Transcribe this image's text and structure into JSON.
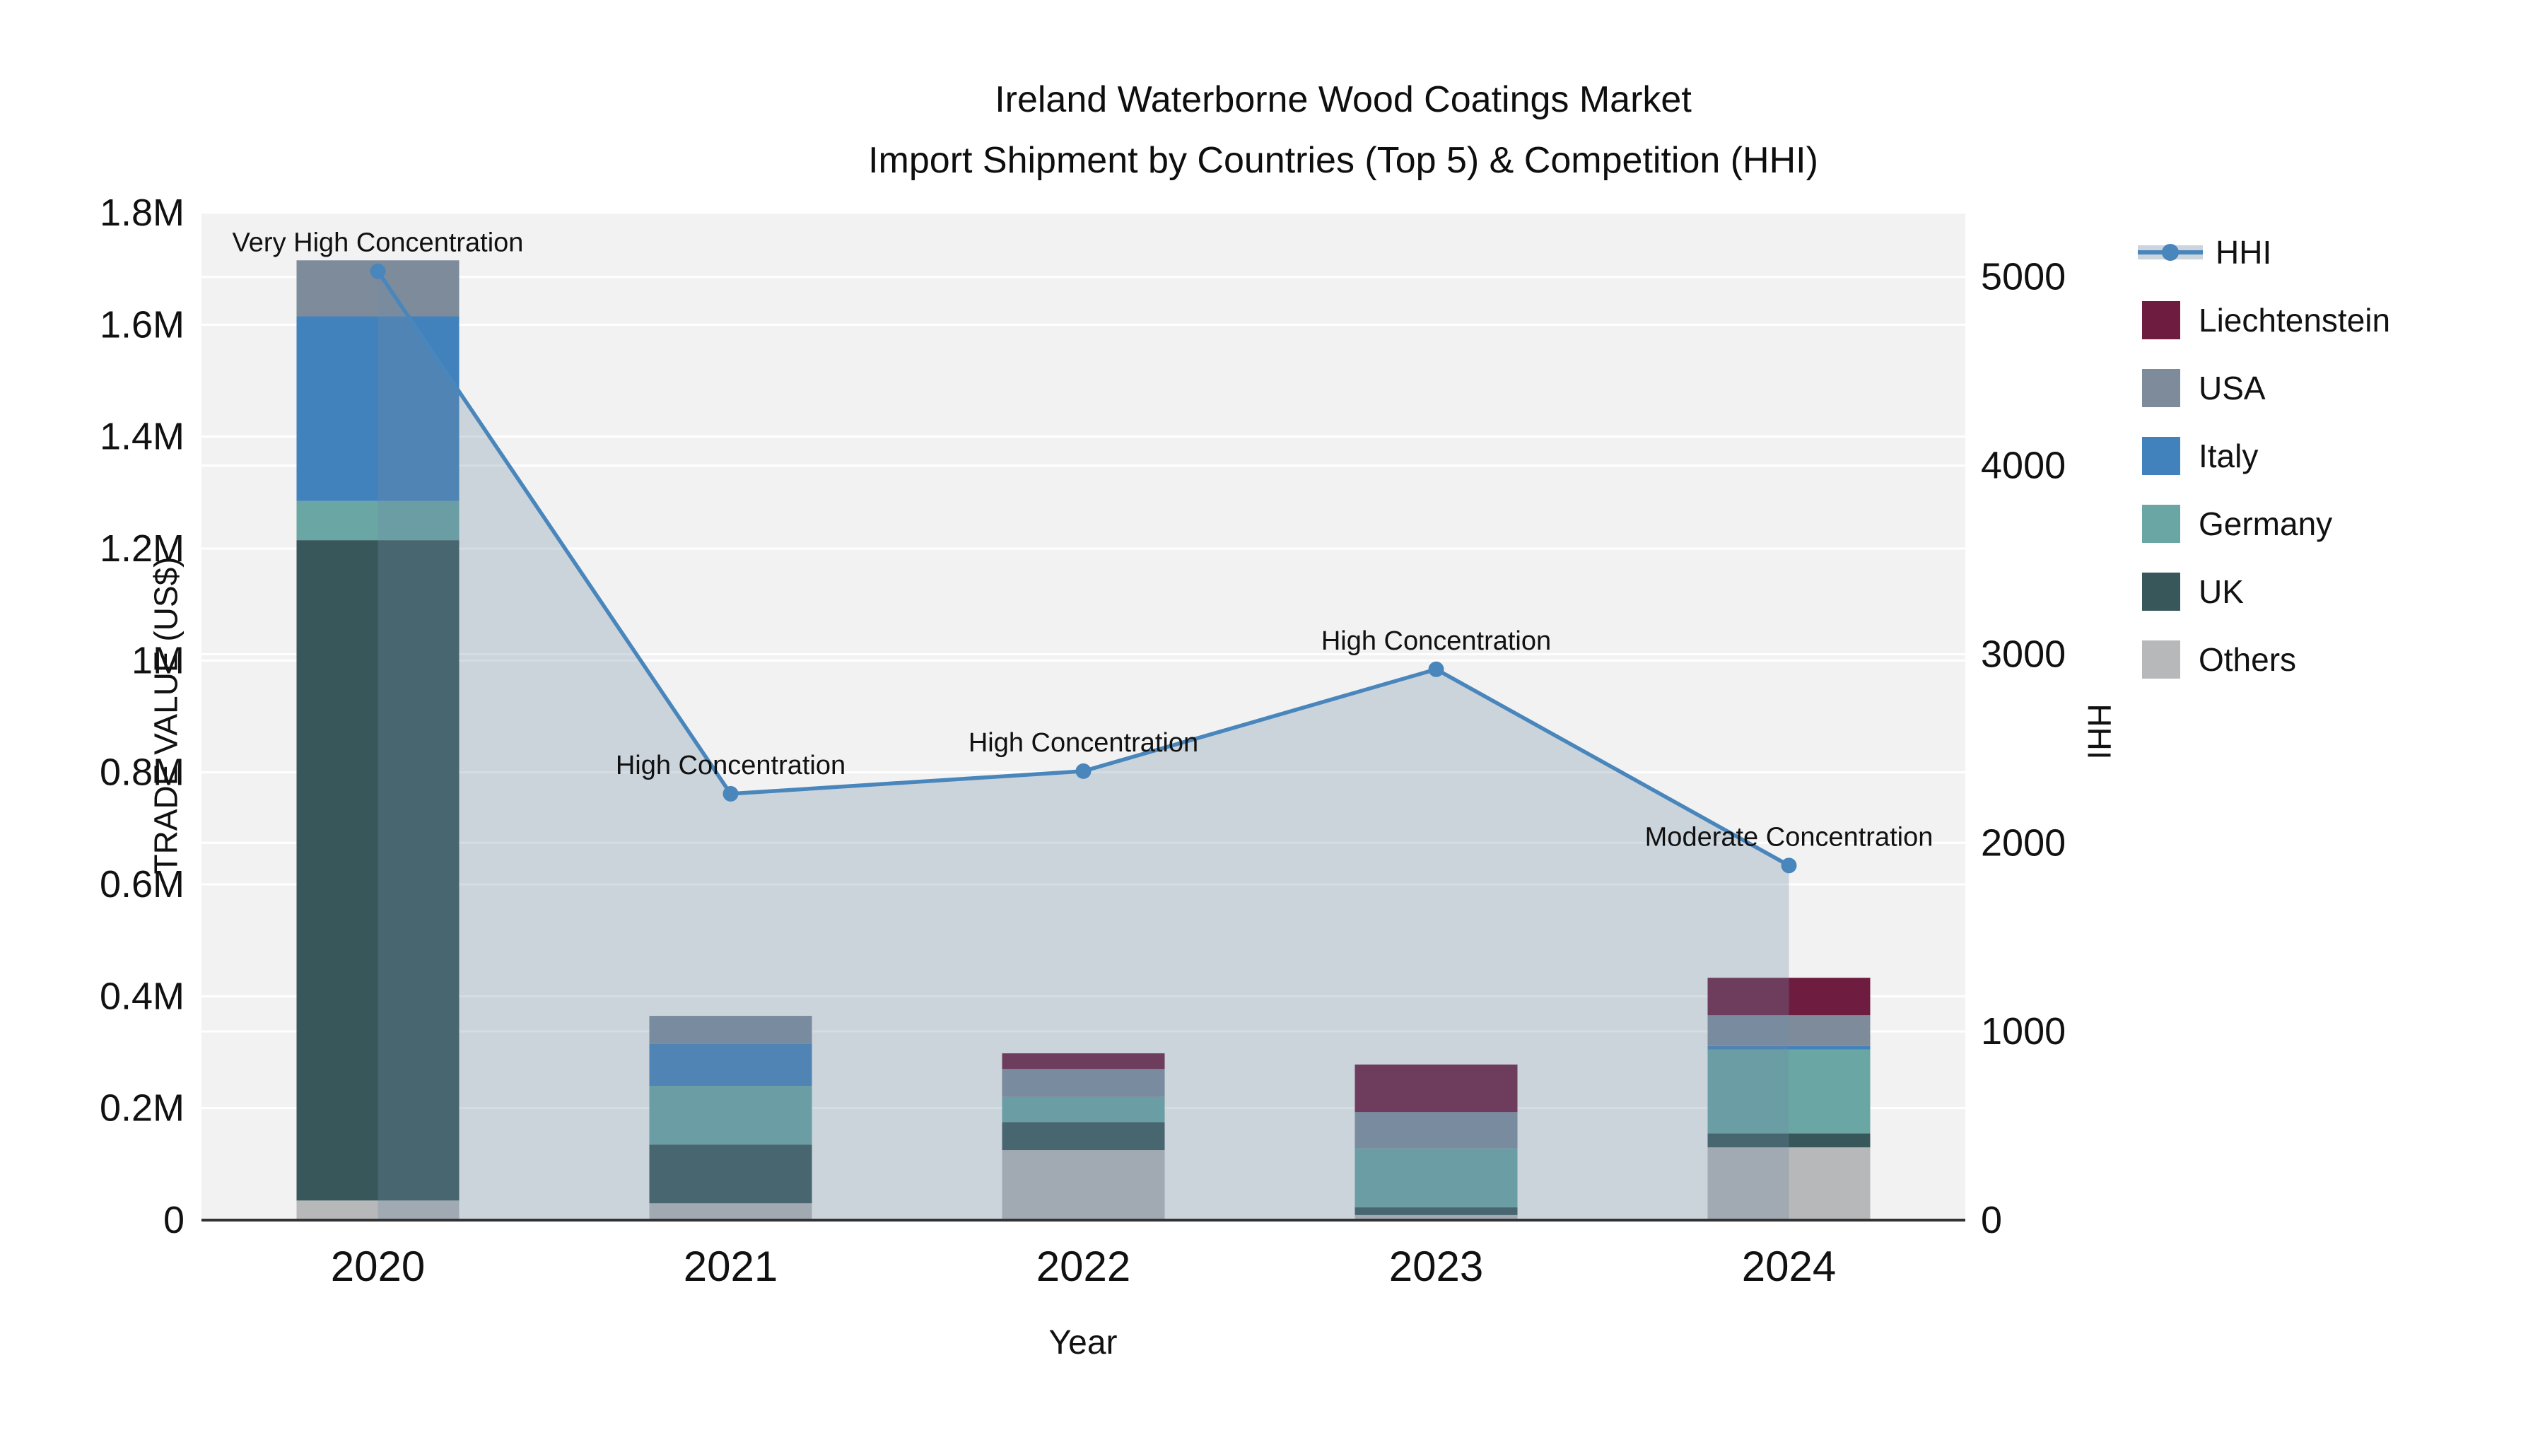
{
  "title": {
    "line1": "Ireland Waterborne Wood Coatings Market",
    "line2": "Import Shipment by Countries (Top 5) & Competition (HHI)"
  },
  "axes": {
    "y_left": {
      "title": "TRADE VALUE (US$)",
      "ticks": [
        {
          "v": 0,
          "label": "0"
        },
        {
          "v": 200000,
          "label": "0.2M"
        },
        {
          "v": 400000,
          "label": "0.4M"
        },
        {
          "v": 600000,
          "label": "0.6M"
        },
        {
          "v": 800000,
          "label": "0.8M"
        },
        {
          "v": 1000000,
          "label": "1M"
        },
        {
          "v": 1200000,
          "label": "1.2M"
        },
        {
          "v": 1400000,
          "label": "1.4M"
        },
        {
          "v": 1600000,
          "label": "1.6M"
        },
        {
          "v": 1800000,
          "label": "1.8M"
        }
      ]
    },
    "y_right": {
      "title": "HHI",
      "ticks": [
        {
          "v": 0,
          "label": "0"
        },
        {
          "v": 1000,
          "label": "1000"
        },
        {
          "v": 2000,
          "label": "2000"
        },
        {
          "v": 3000,
          "label": "3000"
        },
        {
          "v": 4000,
          "label": "4000"
        },
        {
          "v": 5000,
          "label": "5000"
        }
      ]
    },
    "x": {
      "title": "Year"
    }
  },
  "legend": {
    "items": [
      {
        "label": "HHI",
        "type": "line",
        "color": "#4986BC"
      },
      {
        "label": "Liechtenstein",
        "type": "square",
        "color": "#6E1C3F"
      },
      {
        "label": "USA",
        "type": "square",
        "color": "#7D8B9B"
      },
      {
        "label": "Italy",
        "type": "square",
        "color": "#4182BC"
      },
      {
        "label": "Germany",
        "type": "square",
        "color": "#69A6A4"
      },
      {
        "label": "UK",
        "type": "square",
        "color": "#37575A"
      },
      {
        "label": "Others",
        "type": "square",
        "color": "#B7B8B9"
      }
    ]
  },
  "colors": {
    "plot_bg": "#f2f2f2",
    "grid": "#ffffff",
    "axis_line": "#333333",
    "text": "#111111",
    "hhi_line": "#4986BC",
    "hhi_area": "rgba(114,138,164,0.30)"
  },
  "chart_data": {
    "type": "combo: stacked bar (trade value, left axis) + line with area (HHI, right axis)",
    "categories": [
      "2020",
      "2021",
      "2022",
      "2023",
      "2024"
    ],
    "stacked_bar_series_bottom_to_top": [
      {
        "name": "Others",
        "color": "#B7B8B9",
        "values": [
          35000,
          30000,
          125000,
          9000,
          130000
        ]
      },
      {
        "name": "UK",
        "color": "#37575A",
        "values": [
          1180000,
          105000,
          50000,
          14000,
          25000
        ]
      },
      {
        "name": "Germany",
        "color": "#69A6A4",
        "values": [
          70000,
          105000,
          45000,
          105000,
          150000
        ]
      },
      {
        "name": "Italy",
        "color": "#4182BC",
        "values": [
          330000,
          75000,
          0,
          0,
          6000
        ]
      },
      {
        "name": "USA",
        "color": "#7D8B9B",
        "values": [
          100000,
          50000,
          50000,
          65000,
          55000
        ]
      },
      {
        "name": "Liechtenstein",
        "color": "#6E1C3F",
        "values": [
          0,
          0,
          28000,
          85000,
          67000
        ]
      }
    ],
    "bar_totals": [
      1715000,
      365000,
      298000,
      278000,
      433000
    ],
    "line_series": {
      "name": "HHI",
      "axis": "right",
      "values": [
        5030,
        2260,
        2380,
        2920,
        1880
      ],
      "color": "#4986BC",
      "area_fill": "rgba(114,138,164,0.30)"
    },
    "annotations": [
      {
        "category": "2020",
        "text": "Very High Concentration"
      },
      {
        "category": "2021",
        "text": "High Concentration"
      },
      {
        "category": "2022",
        "text": "High Concentration"
      },
      {
        "category": "2023",
        "text": "High Concentration"
      },
      {
        "category": "2024",
        "text": "Moderate Concentration"
      }
    ],
    "title": "Ireland Waterborne Wood Coatings Market — Import Shipment by Countries (Top 5) & Competition (HHI)",
    "xlabel": "Year",
    "ylabel_left": "TRADE VALUE (US$)",
    "ylabel_right": "HHI",
    "ylim_left": [
      0,
      1800000
    ],
    "ylim_right_ticks": [
      0,
      5000
    ],
    "ylim_right_scale_max": 5340,
    "grid": true,
    "legend_position": "right"
  }
}
